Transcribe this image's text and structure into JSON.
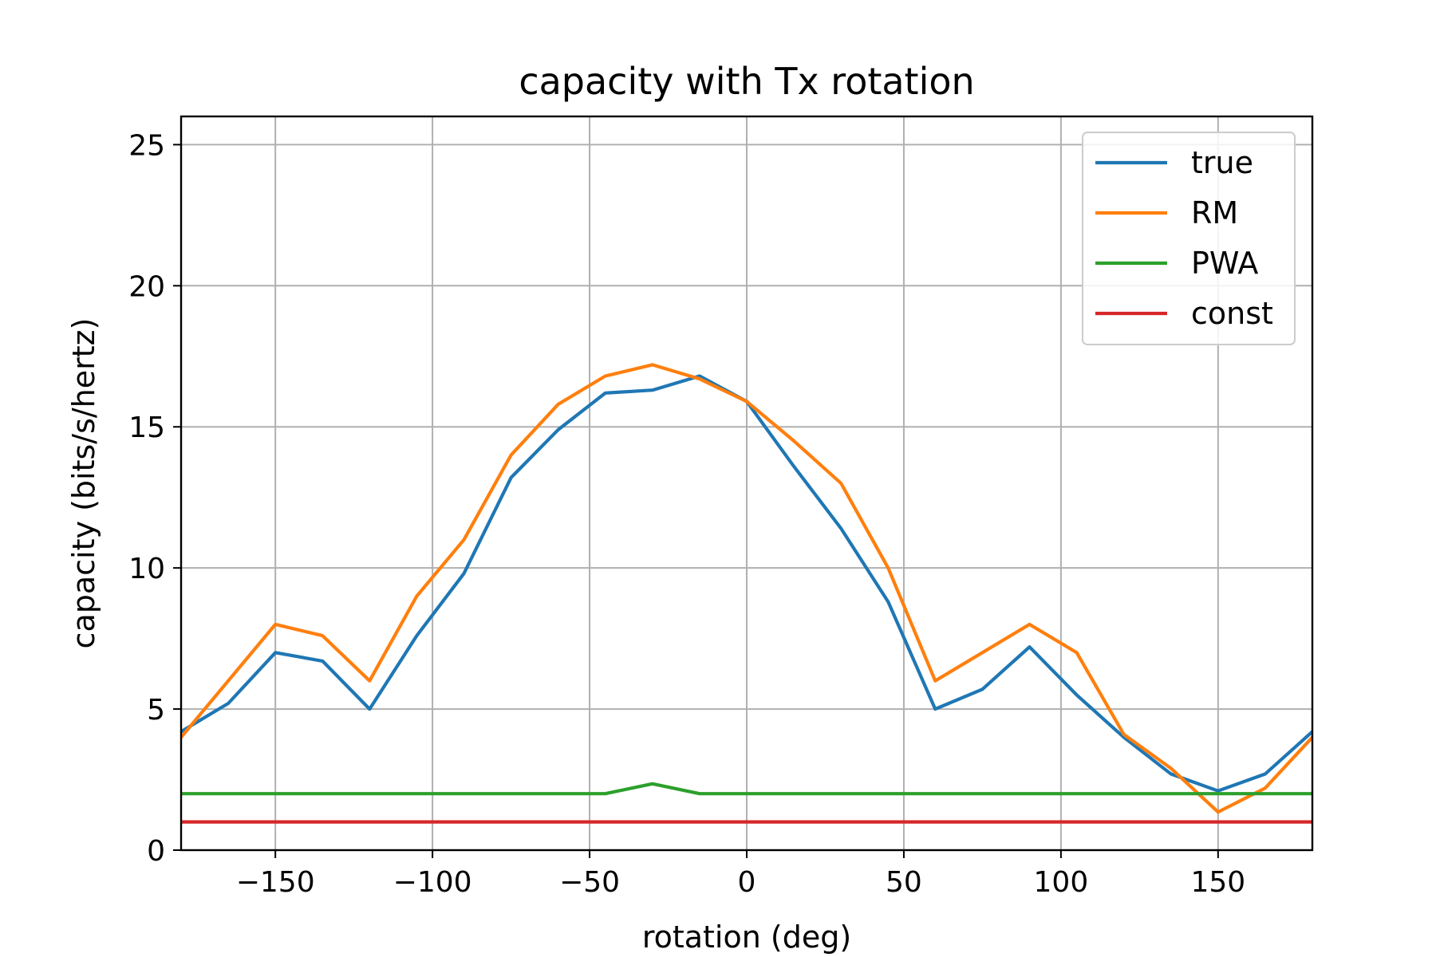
{
  "chart_data": {
    "type": "line",
    "title": "capacity with Tx rotation",
    "xlabel": "rotation (deg)",
    "ylabel": "capacity (bits/s/hertz)",
    "xlim": [
      -180,
      180
    ],
    "ylim": [
      0,
      26
    ],
    "xticks": [
      -150,
      -100,
      -50,
      0,
      50,
      100,
      150
    ],
    "xtick_labels": [
      "−150",
      "−100",
      "−50",
      "0",
      "50",
      "100",
      "150"
    ],
    "yticks": [
      0,
      5,
      10,
      15,
      20,
      25
    ],
    "ytick_labels": [
      "0",
      "5",
      "10",
      "15",
      "20",
      "25"
    ],
    "grid": true,
    "legend_position": "top-right",
    "x": [
      -180,
      -165,
      -150,
      -135,
      -120,
      -105,
      -90,
      -75,
      -60,
      -45,
      -30,
      -15,
      0,
      15,
      30,
      45,
      60,
      75,
      90,
      105,
      120,
      135,
      150,
      165,
      180
    ],
    "series": [
      {
        "name": "true",
        "color": "#1f77b4",
        "values": [
          4.2,
          5.2,
          7.0,
          6.7,
          5.0,
          7.6,
          9.8,
          13.2,
          14.9,
          16.2,
          16.3,
          16.8,
          15.9,
          13.6,
          11.4,
          8.8,
          5.0,
          5.7,
          7.2,
          5.5,
          4.0,
          2.7,
          2.1,
          2.7,
          4.2
        ]
      },
      {
        "name": "RM",
        "color": "#ff7f0e",
        "values": [
          4.0,
          6.0,
          8.0,
          7.6,
          6.0,
          9.0,
          11.0,
          14.0,
          15.8,
          16.8,
          17.2,
          16.7,
          15.9,
          14.5,
          13.0,
          10.0,
          6.0,
          7.0,
          8.0,
          7.0,
          4.1,
          2.9,
          1.35,
          2.2,
          4.0
        ]
      },
      {
        "name": "PWA",
        "color": "#2ca02c",
        "values": [
          2.0,
          2.0,
          2.0,
          2.0,
          2.0,
          2.0,
          2.0,
          2.0,
          2.0,
          2.0,
          2.35,
          2.0,
          2.0,
          2.0,
          2.0,
          2.0,
          2.0,
          2.0,
          2.0,
          2.0,
          2.0,
          2.0,
          2.0,
          2.0,
          2.0
        ]
      },
      {
        "name": "const",
        "color": "#d62728",
        "values": [
          1.0,
          1.0,
          1.0,
          1.0,
          1.0,
          1.0,
          1.0,
          1.0,
          1.0,
          1.0,
          1.0,
          1.0,
          1.0,
          1.0,
          1.0,
          1.0,
          1.0,
          1.0,
          1.0,
          1.0,
          1.0,
          1.0,
          1.0,
          1.0,
          1.0
        ]
      }
    ]
  }
}
